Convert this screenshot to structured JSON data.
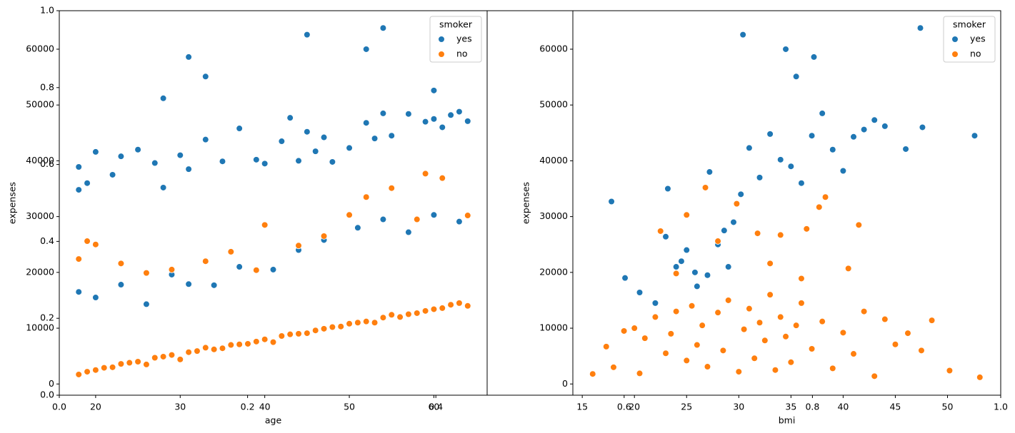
{
  "chart_data": [
    {
      "type": "axes",
      "xlim": [
        0,
        1
      ],
      "ylim": [
        0,
        1
      ],
      "xticks": [
        {
          "value": 0,
          "label": "0.0"
        },
        0.2,
        0.4,
        0.6,
        0.8,
        {
          "value": 1,
          "label": "1.0"
        }
      ],
      "yticks": [
        {
          "value": 0,
          "label": "0.0"
        },
        0.2,
        0.4,
        0.6,
        0.8,
        {
          "value": 1,
          "label": "1.0"
        }
      ]
    },
    {
      "type": "scatter",
      "x_label": "age",
      "y_label": "expenses",
      "xlim": [
        15.7,
        66.3
      ],
      "ylim": [
        -2010,
        66900
      ],
      "xticks": [
        20,
        30,
        40,
        50,
        60
      ],
      "yticks": [
        0,
        10000,
        20000,
        30000,
        40000,
        50000,
        60000
      ],
      "legend_title": "smoker",
      "legend": "upper right",
      "series": [
        {
          "name": "yes",
          "color": "#1f77b4",
          "x": [
            18,
            18,
            19,
            20,
            22,
            23,
            25,
            27,
            28,
            30,
            31,
            33,
            35,
            37,
            39,
            40,
            42,
            43,
            44,
            45,
            46,
            47,
            48,
            50,
            52,
            53,
            54,
            55,
            57,
            59,
            60,
            61,
            62,
            63,
            64,
            18,
            20,
            23,
            26,
            29,
            31,
            34,
            37,
            41,
            44,
            47,
            51,
            54,
            57,
            60,
            63,
            28,
            31,
            33,
            45,
            52,
            54,
            60
          ],
          "values": [
            34800,
            38900,
            36000,
            41600,
            37500,
            40800,
            42000,
            39600,
            35200,
            41000,
            38500,
            43800,
            39900,
            45800,
            40200,
            39500,
            43500,
            47700,
            40000,
            45200,
            41700,
            44200,
            39800,
            42300,
            46800,
            44000,
            48500,
            44500,
            48400,
            47000,
            47500,
            46000,
            48200,
            48800,
            47100,
            16500,
            15500,
            17800,
            14300,
            19600,
            17900,
            17700,
            21000,
            20500,
            24000,
            25800,
            28000,
            29500,
            27200,
            30300,
            29100,
            51200,
            58600,
            55100,
            62600,
            60000,
            63800,
            52600
          ]
        },
        {
          "name": "no",
          "color": "#ff7f0e",
          "x": [
            18,
            19,
            20,
            21,
            22,
            23,
            24,
            25,
            26,
            27,
            28,
            29,
            30,
            31,
            32,
            33,
            34,
            35,
            36,
            37,
            38,
            39,
            40,
            41,
            42,
            43,
            44,
            45,
            46,
            47,
            48,
            49,
            50,
            51,
            52,
            53,
            54,
            55,
            56,
            57,
            58,
            59,
            60,
            61,
            62,
            63,
            64,
            18,
            19,
            20,
            23,
            26,
            29,
            33,
            36,
            39,
            40,
            44,
            47,
            50,
            52,
            55,
            58,
            59,
            61,
            64
          ],
          "values": [
            1700,
            2200,
            2500,
            2900,
            3000,
            3600,
            3800,
            4000,
            3500,
            4700,
            4900,
            5200,
            4400,
            5700,
            5900,
            6500,
            6200,
            6400,
            7000,
            7100,
            7200,
            7600,
            8000,
            7500,
            8600,
            8900,
            9000,
            9100,
            9600,
            9900,
            10200,
            10300,
            10800,
            11000,
            11200,
            11000,
            11900,
            12400,
            12000,
            12500,
            12700,
            13100,
            13400,
            13600,
            14200,
            14500,
            14000,
            22400,
            25600,
            25000,
            21600,
            19900,
            20500,
            22000,
            23700,
            20400,
            28500,
            24800,
            26500,
            30300,
            33500,
            35100,
            29500,
            37700,
            36900,
            30200
          ]
        }
      ]
    },
    {
      "type": "scatter",
      "x_label": "bmi",
      "y_label": "expenses",
      "xlim": [
        14.1,
        55.1
      ],
      "ylim": [
        -2010,
        66900
      ],
      "xticks": [
        15,
        20,
        25,
        30,
        35,
        40,
        45,
        50
      ],
      "yticks": [
        0,
        10000,
        20000,
        30000,
        40000,
        50000,
        60000
      ],
      "legend_title": "smoker",
      "legend": "upper right",
      "series": [
        {
          "name": "yes",
          "color": "#1f77b4",
          "x": [
            17.8,
            19.1,
            20.5,
            22,
            23,
            24,
            25,
            26,
            27,
            28,
            29,
            23.2,
            24.5,
            25.8,
            27.2,
            28.6,
            29.5,
            30.2,
            31,
            32,
            33,
            34,
            35,
            36,
            37,
            38,
            39,
            40,
            41,
            42,
            43,
            44,
            46,
            47.6,
            52.6,
            30.4,
            34.5,
            35.5,
            37.2,
            47.4
          ],
          "values": [
            32700,
            19000,
            16400,
            14500,
            26400,
            21000,
            24000,
            17500,
            19500,
            25000,
            21000,
            35000,
            22000,
            20000,
            38000,
            27500,
            29000,
            34000,
            42300,
            37000,
            44800,
            40200,
            39000,
            36000,
            44500,
            48500,
            42000,
            38200,
            44300,
            45600,
            47300,
            46200,
            42100,
            46000,
            44500,
            62600,
            60000,
            55100,
            58600,
            63800
          ]
        },
        {
          "name": "no",
          "color": "#ff7f0e",
          "x": [
            16,
            17.3,
            18,
            19,
            20,
            20.5,
            21,
            22,
            23,
            23.5,
            24,
            25,
            25.5,
            26,
            26.5,
            27,
            28,
            28.5,
            29,
            30,
            30.5,
            31,
            31.5,
            32,
            32.5,
            33,
            33.5,
            34,
            34.5,
            35,
            35.5,
            36,
            37,
            38,
            39,
            40,
            41,
            42,
            43,
            44,
            45,
            46.2,
            47.5,
            48.5,
            50.2,
            53.1,
            22.5,
            25,
            26.8,
            29.8,
            31.8,
            34,
            36.5,
            37.7,
            38.3,
            40.5,
            41.5,
            24,
            28,
            33,
            36
          ],
          "values": [
            1800,
            6700,
            3000,
            9500,
            10000,
            1900,
            8200,
            12000,
            5500,
            9000,
            13000,
            4200,
            14000,
            7000,
            10500,
            3100,
            12800,
            6000,
            15000,
            2200,
            9800,
            13500,
            4600,
            11000,
            7800,
            16000,
            2500,
            12000,
            8500,
            3900,
            10500,
            14500,
            6300,
            11200,
            2800,
            9200,
            5400,
            13000,
            1400,
            11600,
            7100,
            9100,
            6000,
            11400,
            2400,
            1200,
            27400,
            30300,
            35200,
            32300,
            27000,
            26700,
            27800,
            31700,
            33500,
            20700,
            28500,
            19800,
            25600,
            21600,
            18900
          ]
        }
      ]
    }
  ]
}
